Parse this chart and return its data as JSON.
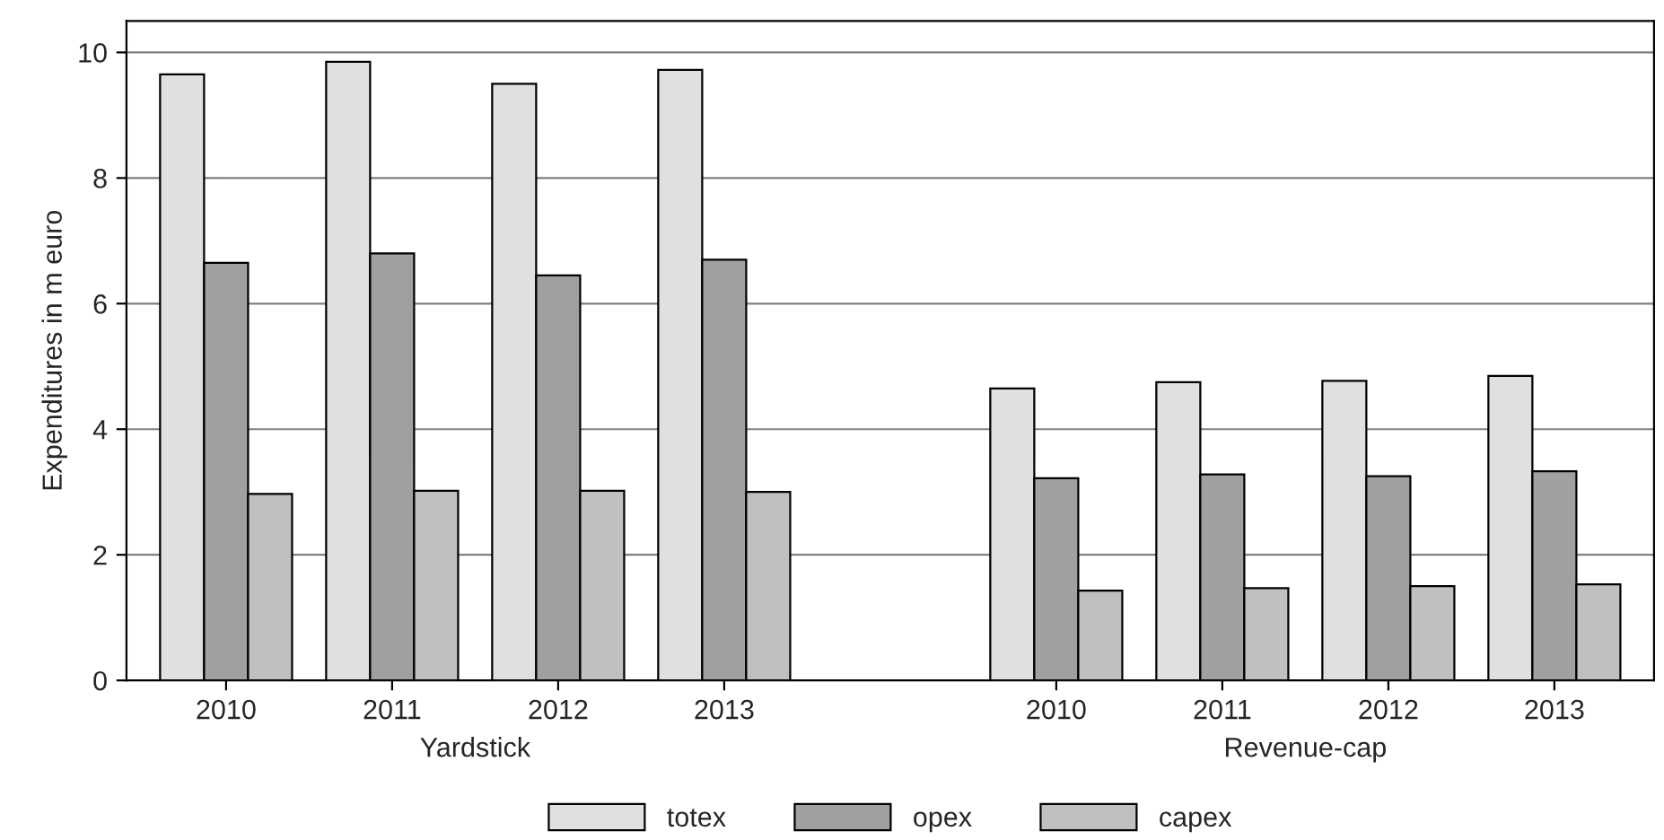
{
  "chart_data": {
    "type": "bar",
    "ylabel": "Expenditures in m euro",
    "categories": [
      "2010",
      "2011",
      "2012",
      "2013",
      null,
      "2010",
      "2011",
      "2012",
      "2013"
    ],
    "series": [
      {
        "name": "totex",
        "color": "#e0e0e0",
        "values": [
          9.65,
          9.85,
          9.5,
          9.72,
          null,
          4.65,
          4.75,
          4.77,
          4.85
        ]
      },
      {
        "name": "opex",
        "color": "#a0a0a0",
        "values": [
          6.65,
          6.8,
          6.45,
          6.7,
          null,
          3.22,
          3.28,
          3.25,
          3.33
        ]
      },
      {
        "name": "capex",
        "color": "#c0c0c0",
        "values": [
          2.97,
          3.02,
          3.02,
          3.0,
          null,
          1.43,
          1.47,
          1.5,
          1.53
        ]
      }
    ],
    "ylim": [
      0,
      10.5
    ],
    "yticks": [
      0,
      2,
      4,
      6,
      8,
      10
    ],
    "grid": "y",
    "legend": "bottom",
    "annotations": [
      "Yardstick",
      "Revenue-cap"
    ]
  }
}
